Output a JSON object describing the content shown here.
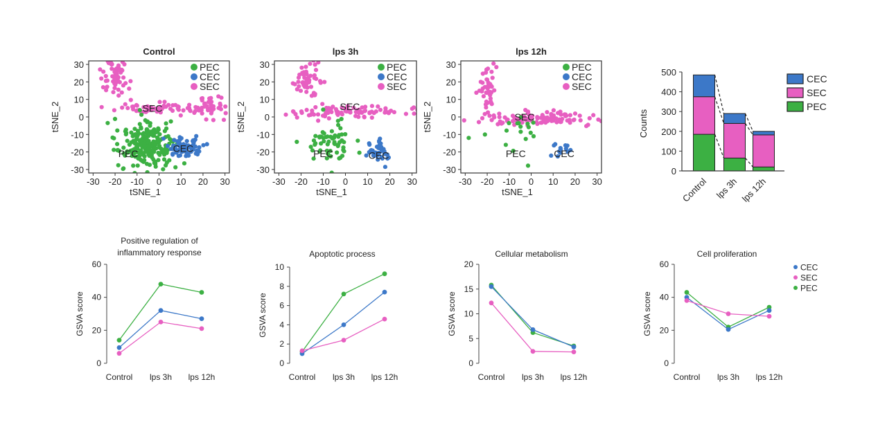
{
  "colors": {
    "PEC": "#3cb043",
    "CEC": "#3c78c8",
    "SEC": "#e75fc1"
  },
  "chart_data": [
    {
      "type": "scatter",
      "title": "Control",
      "xlabel": "tSNE_1",
      "ylabel": "tSNE_2",
      "xlim": [
        -32,
        32
      ],
      "ylim": [
        -32,
        32
      ],
      "xticks": [
        -30,
        -20,
        -10,
        0,
        10,
        20,
        30
      ],
      "yticks": [
        -30,
        -20,
        -10,
        0,
        10,
        20,
        30
      ],
      "legend": [
        "PEC",
        "CEC",
        "SEC"
      ],
      "legend_position": "top-right",
      "annotations": [
        {
          "text": "SEC",
          "x": -3,
          "y": 5
        },
        {
          "text": "PEC",
          "x": -14,
          "y": -21
        },
        {
          "text": "CEC",
          "x": 11,
          "y": -18
        }
      ],
      "clusters": [
        {
          "series": "SEC",
          "n": 60,
          "cx": -20,
          "cy": 22,
          "sx": 3,
          "sy": 6
        },
        {
          "series": "SEC",
          "n": 60,
          "cx": -2,
          "cy": 5,
          "sx": 12,
          "sy": 1.5
        },
        {
          "series": "SEC",
          "n": 40,
          "cx": 22,
          "cy": 6,
          "sx": 4,
          "sy": 3
        },
        {
          "series": "PEC",
          "n": 230,
          "cx": -5,
          "cy": -16,
          "sx": 6,
          "sy": 7
        },
        {
          "series": "CEC",
          "n": 70,
          "cx": 12,
          "cy": -17,
          "sx": 4,
          "sy": 3
        }
      ]
    },
    {
      "type": "scatter",
      "title": "lps 3h",
      "xlabel": "tSNE_1",
      "ylabel": "tSNE_2",
      "xlim": [
        -32,
        32
      ],
      "ylim": [
        -32,
        32
      ],
      "xticks": [
        -30,
        -20,
        -10,
        0,
        10,
        20,
        30
      ],
      "yticks": [
        -30,
        -20,
        -10,
        0,
        10,
        20,
        30
      ],
      "legend": [
        "PEC",
        "CEC",
        "SEC"
      ],
      "legend_position": "top-right",
      "annotations": [
        {
          "text": "SEC",
          "x": 2,
          "y": 6
        },
        {
          "text": "PEC",
          "x": -10,
          "y": -21
        },
        {
          "text": "CEC",
          "x": 15,
          "y": -22
        }
      ],
      "clusters": [
        {
          "series": "SEC",
          "n": 50,
          "cx": -18,
          "cy": 22,
          "sx": 3,
          "sy": 5
        },
        {
          "series": "SEC",
          "n": 90,
          "cx": 2,
          "cy": 3,
          "sx": 14,
          "sy": 1.5
        },
        {
          "series": "PEC",
          "n": 60,
          "cx": -7,
          "cy": -15,
          "sx": 5,
          "sy": 6
        },
        {
          "series": "CEC",
          "n": 40,
          "cx": 15,
          "cy": -20,
          "sx": 3,
          "sy": 2.5
        }
      ]
    },
    {
      "type": "scatter",
      "title": "lps 12h",
      "xlabel": "tSNE_1",
      "ylabel": "tSNE_2",
      "xlim": [
        -32,
        32
      ],
      "ylim": [
        -32,
        32
      ],
      "xticks": [
        -30,
        -20,
        -10,
        0,
        10,
        20,
        30
      ],
      "yticks": [
        -30,
        -20,
        -10,
        0,
        10,
        20,
        30
      ],
      "legend": [
        "PEC",
        "CEC",
        "SEC"
      ],
      "legend_position": "top-right",
      "annotations": [
        {
          "text": "SEC",
          "x": -3,
          "y": 0
        },
        {
          "text": "PEC",
          "x": -7,
          "y": -21
        },
        {
          "text": "CEC",
          "x": 15,
          "y": -21
        }
      ],
      "clusters": [
        {
          "series": "SEC",
          "n": 45,
          "cx": -20,
          "cy": 17,
          "sx": 2,
          "sy": 6
        },
        {
          "series": "SEC",
          "n": 110,
          "cx": 3,
          "cy": -1,
          "sx": 15,
          "sy": 2
        },
        {
          "series": "PEC",
          "n": 18,
          "cx": -7,
          "cy": -9,
          "sx": 7,
          "sy": 6
        },
        {
          "series": "CEC",
          "n": 14,
          "cx": 14,
          "cy": -19,
          "sx": 3,
          "sy": 2
        }
      ]
    },
    {
      "type": "bar",
      "stacked": true,
      "categories": [
        "Control",
        "lps 3h",
        "lps 12h"
      ],
      "ylabel": "Counts",
      "ylim": [
        0,
        500
      ],
      "yticks": [
        0,
        100,
        200,
        300,
        400,
        500
      ],
      "legend": [
        "CEC",
        "SEC",
        "PEC"
      ],
      "legend_position": "right",
      "series": [
        {
          "name": "PEC",
          "values": [
            185,
            65,
            20
          ]
        },
        {
          "name": "SEC",
          "values": [
            190,
            175,
            162
          ]
        },
        {
          "name": "CEC",
          "values": [
            110,
            50,
            18
          ]
        }
      ]
    },
    {
      "type": "line",
      "title": "Positive regulation of inflammatory response",
      "title_lines": [
        "Positive regulation of",
        "inflammatory response"
      ],
      "categories": [
        "Control",
        "lps 3h",
        "lps 12h"
      ],
      "ylabel": "GSVA score",
      "ylim": [
        0,
        60
      ],
      "yticks": [
        0,
        20,
        40,
        60
      ],
      "series": [
        {
          "name": "PEC",
          "values": [
            14,
            48,
            43
          ]
        },
        {
          "name": "CEC",
          "values": [
            9.5,
            32,
            27
          ]
        },
        {
          "name": "SEC",
          "values": [
            6,
            25,
            21
          ]
        }
      ]
    },
    {
      "type": "line",
      "title": "Apoptotic process",
      "title_lines": [
        "Apoptotic process"
      ],
      "categories": [
        "Control",
        "lps 3h",
        "lps 12h"
      ],
      "ylabel": "GSVA score",
      "ylim": [
        0,
        10
      ],
      "yticks": [
        0,
        2,
        4,
        6,
        8,
        10
      ],
      "series": [
        {
          "name": "PEC",
          "values": [
            1.2,
            7.2,
            9.3
          ]
        },
        {
          "name": "CEC",
          "values": [
            1.0,
            4.0,
            7.4
          ]
        },
        {
          "name": "SEC",
          "values": [
            1.3,
            2.4,
            4.6
          ]
        }
      ]
    },
    {
      "type": "line",
      "title": "Cellular metabolism",
      "title_lines": [
        "Cellular metabolism"
      ],
      "categories": [
        "Control",
        "lps 3h",
        "lps 12h"
      ],
      "ylabel": "GSVA score",
      "ylim": [
        0,
        20
      ],
      "yticks": [
        0,
        5,
        10,
        15,
        20
      ],
      "series": [
        {
          "name": "PEC",
          "values": [
            15.8,
            6.2,
            3.5
          ]
        },
        {
          "name": "CEC",
          "values": [
            15.5,
            6.8,
            3.3
          ]
        },
        {
          "name": "SEC",
          "values": [
            12.2,
            2.4,
            2.3
          ]
        }
      ]
    },
    {
      "type": "line",
      "title": "Cell proliferation",
      "title_lines": [
        "Cell proliferation"
      ],
      "categories": [
        "Control",
        "lps 3h",
        "lps 12h"
      ],
      "ylabel": "GSVA score",
      "ylim": [
        0,
        60
      ],
      "yticks": [
        0,
        20,
        40,
        60
      ],
      "legend": [
        "CEC",
        "SEC",
        "PEC"
      ],
      "legend_position": "right",
      "series": [
        {
          "name": "PEC",
          "values": [
            43,
            22,
            34
          ]
        },
        {
          "name": "CEC",
          "values": [
            40,
            20.5,
            32
          ]
        },
        {
          "name": "SEC",
          "values": [
            38,
            30,
            28.5
          ]
        }
      ]
    }
  ]
}
